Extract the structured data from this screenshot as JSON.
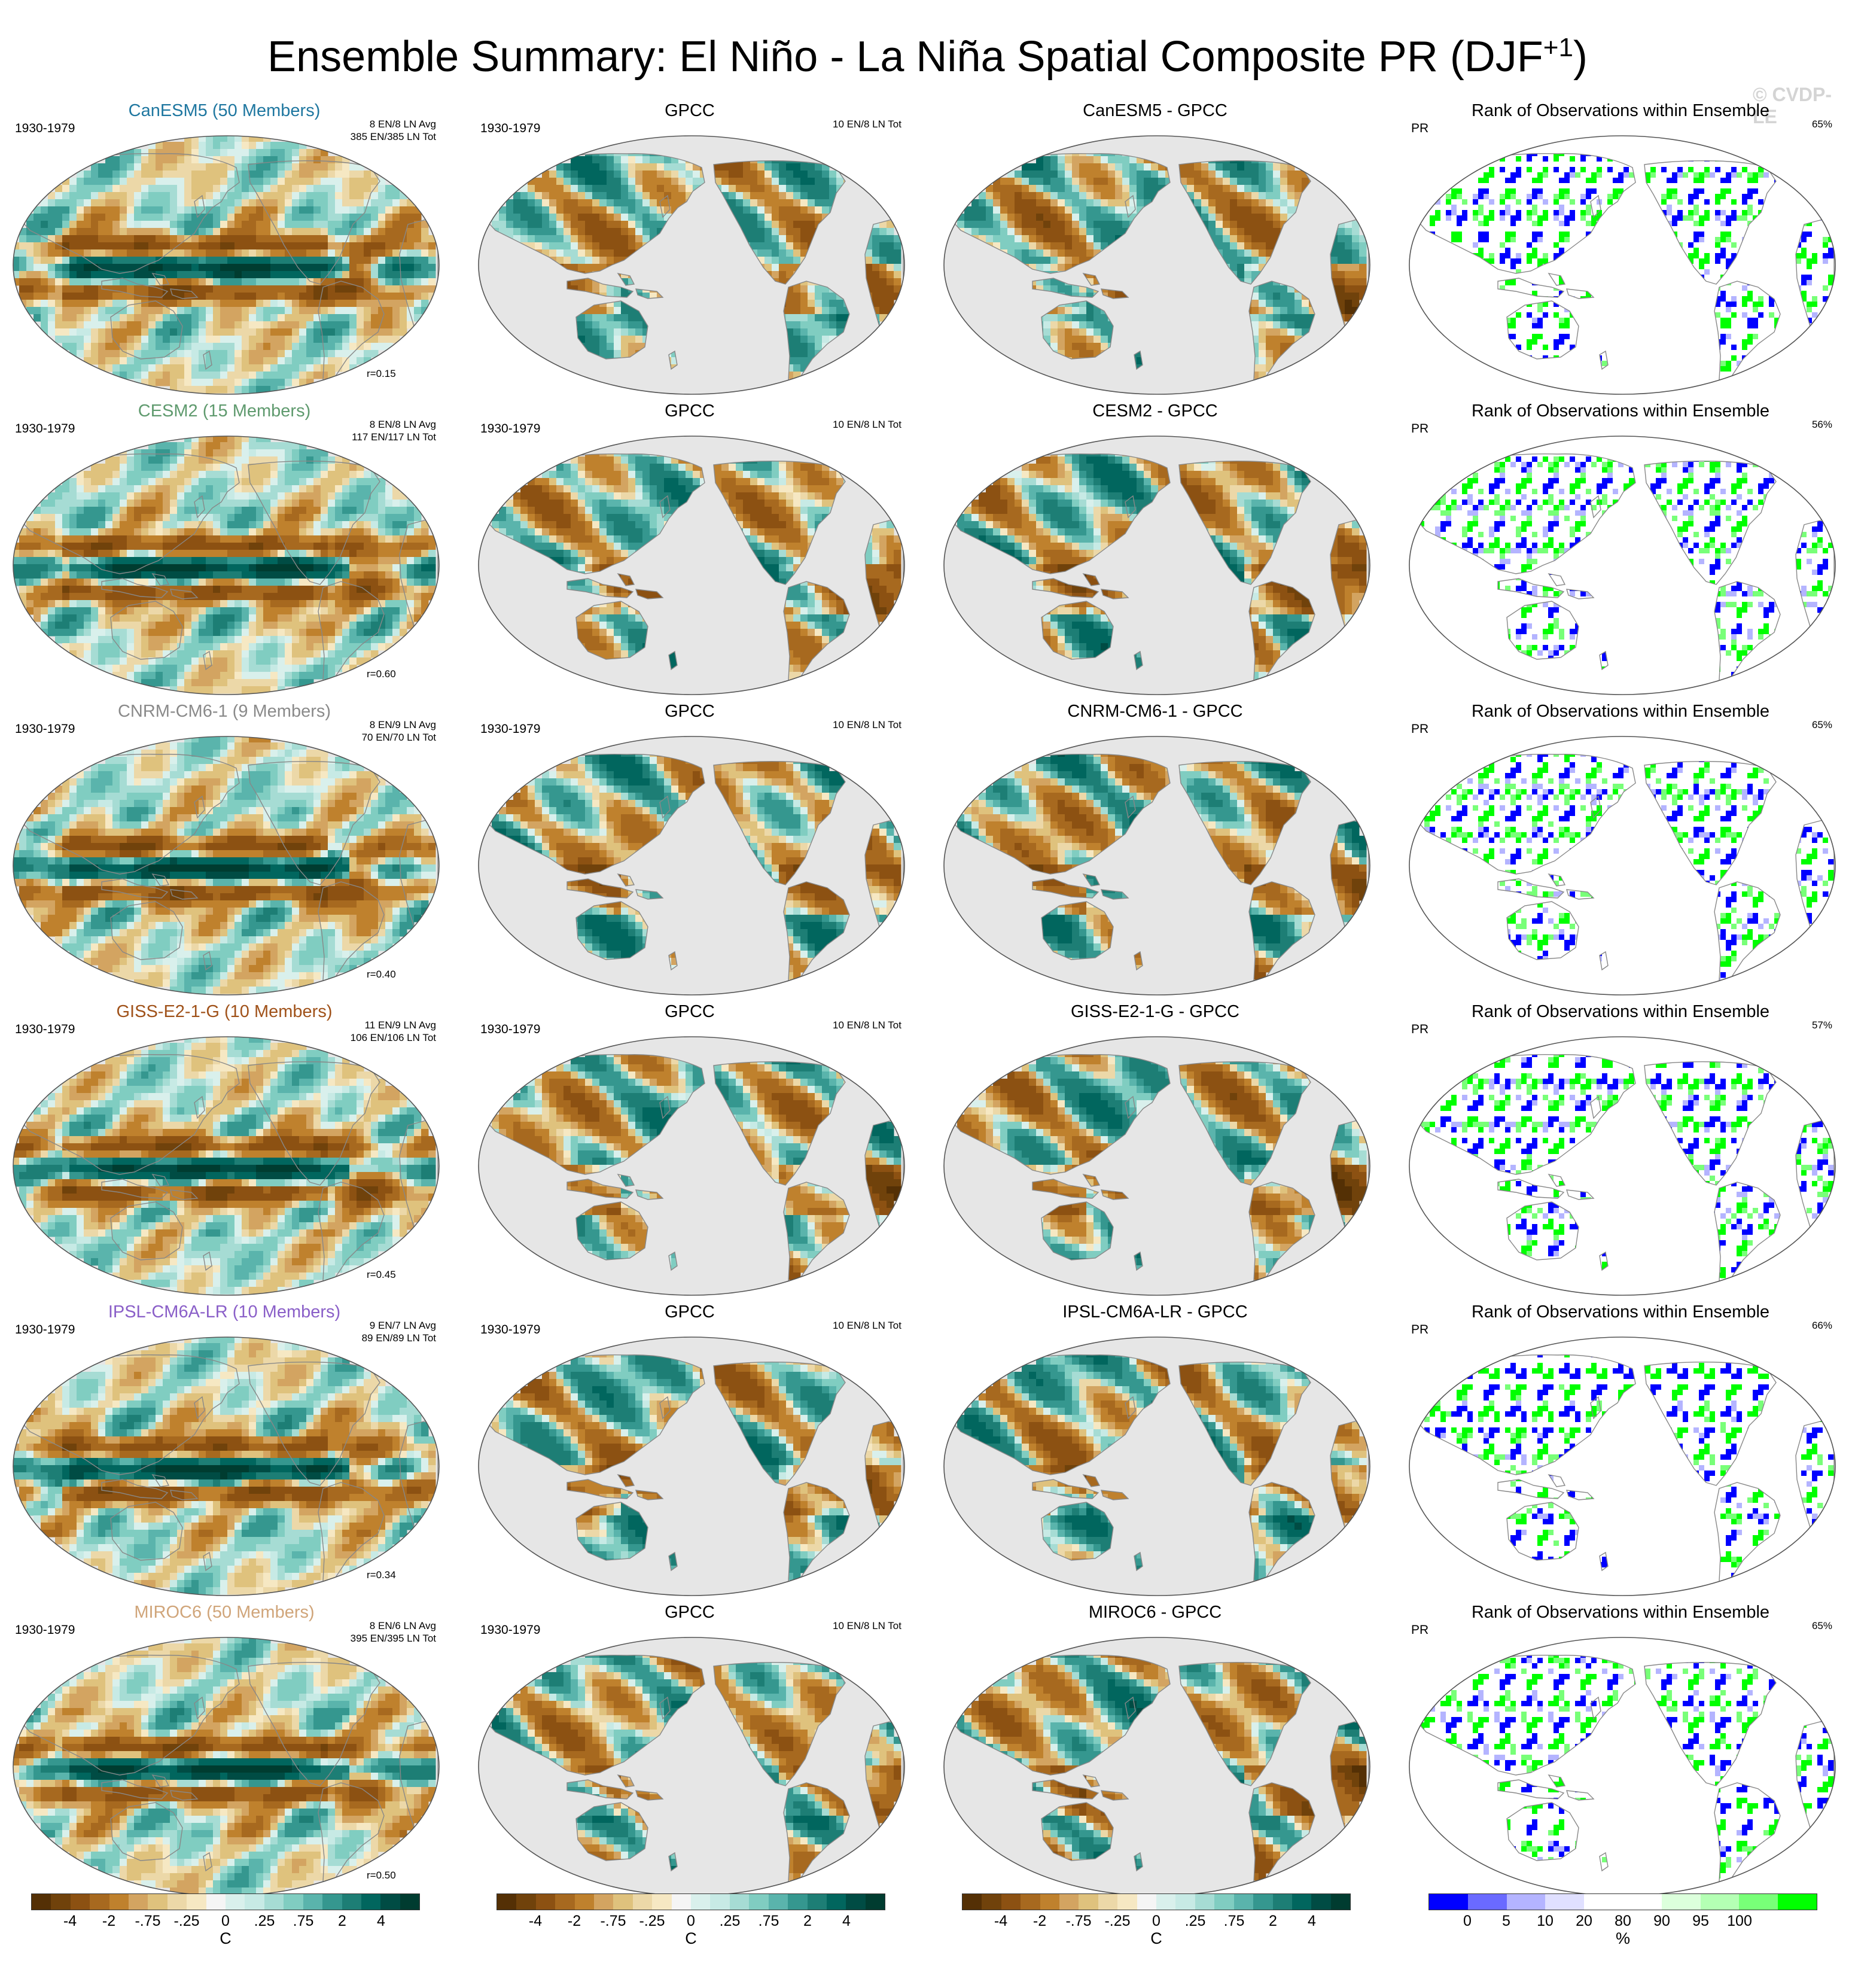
{
  "title": {
    "main": "Ensemble Summary: El Niño - La Niña Spatial Composite PR (DJF",
    "sup": "+1",
    "close": ")"
  },
  "watermark": "© CVDP-LE",
  "colors": {
    "diverging": [
      "#543005",
      "#70420b",
      "#8c5112",
      "#a7691f",
      "#bf812d",
      "#d3a461",
      "#dfc27d",
      "#ecd8a8",
      "#f6e8c3",
      "#f5f5f5",
      "#d9f0ec",
      "#c7eae5",
      "#a6dcd4",
      "#80cdc1",
      "#5ab4ac",
      "#35978f",
      "#1d7e75",
      "#01665e",
      "#004c44",
      "#003c30"
    ],
    "rank": [
      "#0000ff",
      "#6a6aff",
      "#b4b4ff",
      "#e0e0ff",
      "#ffffff",
      "#ffffff",
      "#dcffdc",
      "#b4ffb4",
      "#78ff78",
      "#00ff00"
    ],
    "globe_gray": "#e6e6e6",
    "land_line": "#888888"
  },
  "rows": [
    {
      "model": "CanESM5 (50 Members)",
      "model_color": "#1f77a0",
      "period": "1930-1979",
      "ens_info": [
        "8 EN/8 LN Avg",
        "385 EN/385 LN Tot"
      ],
      "corr": "r=0.15",
      "obs_title": "GPCC",
      "obs_period": "1930-1979",
      "obs_info": "10 EN/8 LN Tot",
      "diff_title": "CanESM5 - GPCC",
      "rank_title": "Rank of Observations within Ensemble",
      "rank_var": "PR",
      "rank_pct": "65%"
    },
    {
      "model": "CESM2 (15 Members)",
      "model_color": "#5f9a6e",
      "period": "1930-1979",
      "ens_info": [
        "8 EN/8 LN Avg",
        "117 EN/117 LN Tot"
      ],
      "corr": "r=0.60",
      "obs_title": "GPCC",
      "obs_period": "1930-1979",
      "obs_info": "10 EN/8 LN Tot",
      "diff_title": "CESM2 - GPCC",
      "rank_title": "Rank of Observations within Ensemble",
      "rank_var": "PR",
      "rank_pct": "56%"
    },
    {
      "model": "CNRM-CM6-1 (9 Members)",
      "model_color": "#8a8a8a",
      "period": "1930-1979",
      "ens_info": [
        "8 EN/9 LN Avg",
        "70 EN/70 LN Tot"
      ],
      "corr": "r=0.40",
      "obs_title": "GPCC",
      "obs_period": "1930-1979",
      "obs_info": "10 EN/8 LN Tot",
      "diff_title": "CNRM-CM6-1 - GPCC",
      "rank_title": "Rank of Observations within Ensemble",
      "rank_var": "PR",
      "rank_pct": "65%"
    },
    {
      "model": "GISS-E2-1-G (10 Members)",
      "model_color": "#a0521a",
      "period": "1930-1979",
      "ens_info": [
        "11 EN/9 LN Avg",
        "106 EN/106 LN Tot"
      ],
      "corr": "r=0.45",
      "obs_title": "GPCC",
      "obs_period": "1930-1979",
      "obs_info": "10 EN/8 LN Tot",
      "diff_title": "GISS-E2-1-G - GPCC",
      "rank_title": "Rank of Observations within Ensemble",
      "rank_var": "PR",
      "rank_pct": "57%"
    },
    {
      "model": "IPSL-CM6A-LR (10 Members)",
      "model_color": "#8a5fc8",
      "period": "1930-1979",
      "ens_info": [
        "9 EN/7 LN Avg",
        "89 EN/89 LN Tot"
      ],
      "corr": "r=0.34",
      "obs_title": "GPCC",
      "obs_period": "1930-1979",
      "obs_info": "10 EN/8 LN Tot",
      "diff_title": "IPSL-CM6A-LR - GPCC",
      "rank_title": "Rank of Observations within Ensemble",
      "rank_var": "PR",
      "rank_pct": "66%"
    },
    {
      "model": "MIROC6 (50 Members)",
      "model_color": "#d0a57a",
      "period": "1930-1979",
      "ens_info": [
        "8 EN/6 LN Avg",
        "395 EN/395 LN Tot"
      ],
      "corr": "r=0.50",
      "obs_title": "GPCC",
      "obs_period": "1930-1979",
      "obs_info": "10 EN/8 LN Tot",
      "diff_title": "MIROC6 - GPCC",
      "rank_title": "Rank of Observations within Ensemble",
      "rank_var": "PR",
      "rank_pct": "65%"
    }
  ],
  "colorbars": [
    {
      "ticks": [
        "-4",
        "-2",
        "-.75",
        "-.25",
        "0",
        ".25",
        ".75",
        "2",
        "4"
      ],
      "unit": "C"
    },
    {
      "ticks": [
        "-4",
        "-2",
        "-.75",
        "-.25",
        "0",
        ".25",
        ".75",
        "2",
        "4"
      ],
      "unit": "C"
    },
    {
      "ticks": [
        "-4",
        "-2",
        "-.75",
        "-.25",
        "0",
        ".25",
        ".75",
        "2",
        "4"
      ],
      "unit": "C"
    },
    {
      "ticks": [
        "0",
        "5",
        "10",
        "20",
        "80",
        "90",
        "95",
        "100"
      ],
      "unit": "%"
    }
  ]
}
